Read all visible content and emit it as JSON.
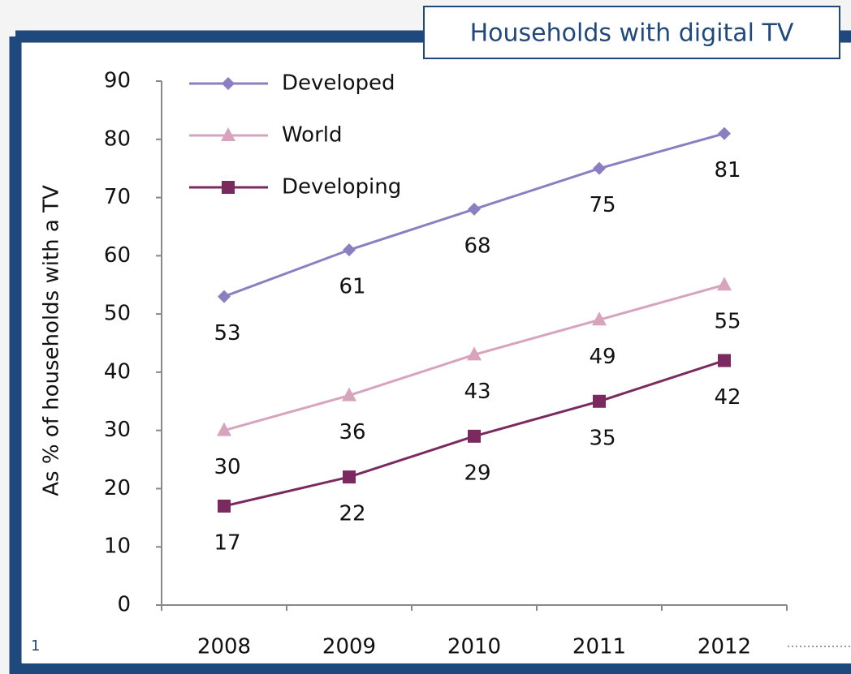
{
  "chart_data": {
    "type": "line",
    "title": "Households with digital TV",
    "y_label": "As % of households with a TV",
    "categories": [
      "2008",
      "2009",
      "2010",
      "2011",
      "2012"
    ],
    "series": [
      {
        "name": "Developed",
        "color": "#8b7fc2",
        "marker": "diamond",
        "values": [
          53,
          61,
          68,
          75,
          81
        ]
      },
      {
        "name": "World",
        "color": "#d8a3bd",
        "marker": "triangle",
        "values": [
          30,
          36,
          43,
          49,
          55
        ]
      },
      {
        "name": "Developing",
        "color": "#7b2a60",
        "marker": "square",
        "values": [
          17,
          22,
          29,
          35,
          42
        ]
      }
    ],
    "ylim": [
      0,
      90
    ],
    "yticks": [
      0,
      10,
      20,
      30,
      40,
      50,
      60,
      70,
      80,
      90
    ],
    "legend": "top-left",
    "slide_number": "1"
  }
}
